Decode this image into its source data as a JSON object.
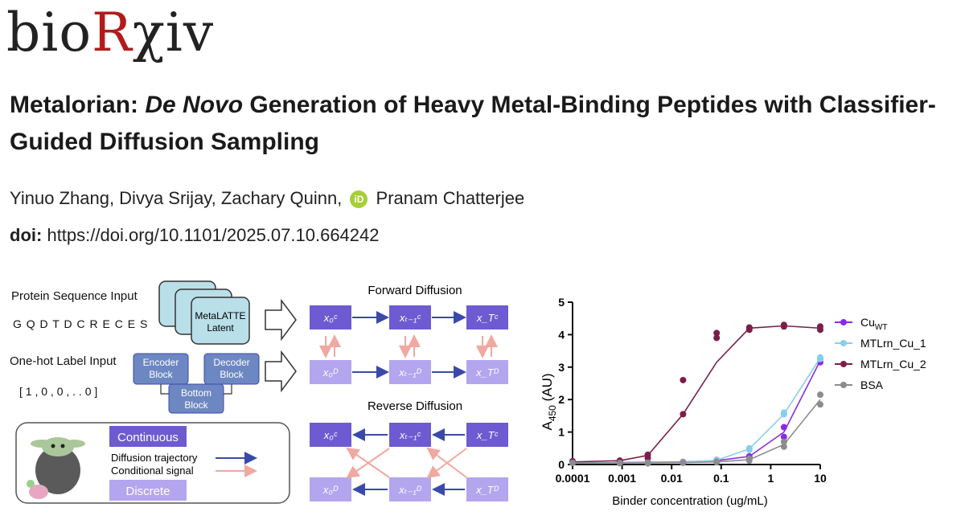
{
  "logo": {
    "part1": "bio",
    "part2": "R",
    "part3": "χiv"
  },
  "paper": {
    "title_part1": "Metalorian: ",
    "title_italic": "De Novo",
    "title_part2": " Generation of Heavy Metal-Binding Peptides with Classifier-Guided Diffusion Sampling",
    "authors_before": "Yinuo Zhang, Divya Srijay, Zachary Quinn,",
    "orcid_icon": "iD",
    "authors_after": "Pranam Chatterjee",
    "doi_label": "doi:",
    "doi_value": "https://doi.org/10.1101/2025.07.10.664242"
  },
  "diagram": {
    "protein_input_label": "Protein Sequence Input",
    "protein_sequence": "G Q D T D C R E C E S",
    "onehot_label": "One-hot Label Input",
    "onehot_vector": "[ 1 , 0 , 0 , . . 0 ]",
    "latent_line1": "MetaLATTE",
    "latent_line2": "Latent",
    "encoder_line1": "Encoder",
    "encoder_line2": "Block",
    "decoder_line1": "Decoder",
    "decoder_line2": "Block",
    "bottom_line1": "Bottom",
    "bottom_line2": "Block",
    "forward_title": "Forward Diffusion",
    "reverse_title": "Reverse Diffusion",
    "legend_continuous": "Continuous",
    "legend_discrete": "Discrete",
    "legend_trajectory": "Diffusion trajectory",
    "legend_conditional": "Conditional signal",
    "colors": {
      "continuous": "#6e5bd1",
      "discrete": "#b3a6ee",
      "trajectory": "#3b4aa8",
      "conditional": "#f0a8a0"
    }
  },
  "chart_data": {
    "type": "scatter",
    "ylabel": "A450 (AU)",
    "ylabel_main": "A",
    "ylabel_sub": "450",
    "ylabel_rest": " (AU)",
    "xlabel": "Binder concentration (ug/mL)",
    "x_scale": "log",
    "xlim": [
      0.0001,
      10
    ],
    "ylim": [
      0,
      5
    ],
    "xticks": [
      "0.0001",
      "0.001",
      "0.01",
      "0.1",
      "1",
      "10"
    ],
    "yticks": [
      "0",
      "1",
      "2",
      "3",
      "4",
      "5"
    ],
    "legend_placement": "right",
    "series": [
      {
        "name": "Cu_WT",
        "label_main": "Cu",
        "label_sub": "WT",
        "color": "#8a2be2",
        "x": [
          0.0001,
          0.0009,
          0.0033,
          0.017,
          0.081,
          0.37,
          1.85,
          10
        ],
        "points": [
          [
            0.1,
            0.05
          ],
          [
            0.05,
            0.08
          ],
          [
            0.04,
            0.07
          ],
          [
            0.06,
            0.08
          ],
          [
            0.1,
            0.12
          ],
          [
            0.2,
            0.25
          ],
          [
            0.85,
            1.15
          ],
          [
            3.15,
            3.25
          ]
        ],
        "curve": [
          0.05,
          0.06,
          0.07,
          0.08,
          0.12,
          0.25,
          1.0,
          3.2
        ]
      },
      {
        "name": "MTLrn_Cu_1",
        "color": "#87ceeb",
        "x": [
          0.0001,
          0.0009,
          0.0033,
          0.017,
          0.081,
          0.37,
          1.85,
          10
        ],
        "points": [
          [
            0.05,
            0.05
          ],
          [
            0.05,
            0.06
          ],
          [
            0.05,
            0.06
          ],
          [
            0.06,
            0.07
          ],
          [
            0.1,
            0.15
          ],
          [
            0.45,
            0.5
          ],
          [
            1.55,
            1.6
          ],
          [
            3.25,
            3.3
          ]
        ],
        "curve": [
          0.05,
          0.05,
          0.06,
          0.07,
          0.13,
          0.48,
          1.55,
          3.28
        ]
      },
      {
        "name": "MTLrn_Cu_2",
        "color": "#7b1e4a",
        "x": [
          0.0001,
          0.0009,
          0.0033,
          0.017,
          0.081,
          0.37,
          1.85,
          10
        ],
        "points": [
          [
            0.05,
            0.1
          ],
          [
            0.08,
            0.12
          ],
          [
            0.2,
            0.3
          ],
          [
            1.55,
            2.6
          ],
          [
            3.9,
            4.05
          ],
          [
            4.15,
            4.22
          ],
          [
            4.25,
            4.3
          ],
          [
            4.15,
            4.25
          ]
        ],
        "curve": [
          0.08,
          0.12,
          0.28,
          1.55,
          3.15,
          4.2,
          4.27,
          4.2
        ]
      },
      {
        "name": "BSA",
        "color": "#8c8c8c",
        "x": [
          0.0001,
          0.0009,
          0.0033,
          0.017,
          0.081,
          0.37,
          1.85,
          10
        ],
        "points": [
          [
            0.05,
            0.05
          ],
          [
            0.04,
            0.05
          ],
          [
            0.04,
            0.06
          ],
          [
            0.05,
            0.06
          ],
          [
            0.07,
            0.09
          ],
          [
            0.12,
            0.18
          ],
          [
            0.55,
            0.7
          ],
          [
            1.85,
            2.15
          ]
        ],
        "curve": [
          0.05,
          0.05,
          0.05,
          0.06,
          0.08,
          0.15,
          0.62,
          2.0
        ]
      }
    ]
  }
}
